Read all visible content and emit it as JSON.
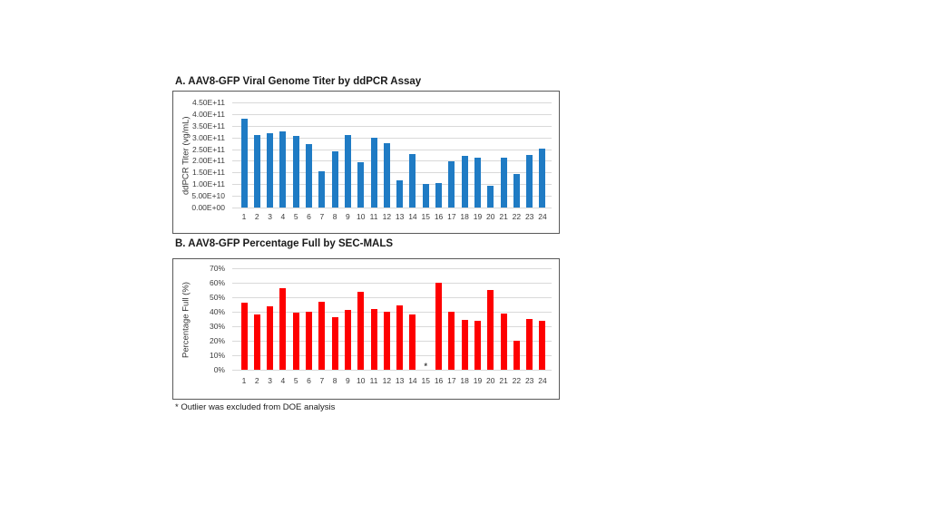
{
  "figure": {
    "background": "#ffffff"
  },
  "footnote": "* Outlier was excluded from DOE analysis",
  "chart_data": [
    {
      "type": "bar",
      "title": "A. AAV8-GFP Viral Genome Titer by ddPCR Assay",
      "xlabel": "",
      "ylabel": "ddPCR Titer (vg/mL)",
      "categories": [
        "1",
        "2",
        "3",
        "4",
        "5",
        "6",
        "7",
        "8",
        "9",
        "10",
        "11",
        "12",
        "13",
        "14",
        "15",
        "16",
        "17",
        "18",
        "19",
        "20",
        "21",
        "22",
        "23",
        "24"
      ],
      "values": [
        380000000000.0,
        310000000000.0,
        320000000000.0,
        325000000000.0,
        307000000000.0,
        272000000000.0,
        155000000000.0,
        240000000000.0,
        310000000000.0,
        193000000000.0,
        300000000000.0,
        275000000000.0,
        117000000000.0,
        227000000000.0,
        100000000000.0,
        105000000000.0,
        197000000000.0,
        222000000000.0,
        212000000000.0,
        93000000000.0,
        215000000000.0,
        145000000000.0,
        225000000000.0,
        252000000000.0
      ],
      "ylim": [
        0,
        450000000000.0
      ],
      "ytick_labels": [
        "4.50E+11",
        "4.00E+11",
        "3.50E+11",
        "3.00E+11",
        "2.50E+11",
        "2.00E+11",
        "1.50E+11",
        "1.00E+11",
        "5.00E+10",
        "0.00E+00"
      ],
      "grid": true,
      "legend": false,
      "bar_color": "#1F7BC4",
      "gridline_color": "#D9D9D9",
      "border_color": "#595959"
    },
    {
      "type": "bar",
      "title": "B. AAV8-GFP Percentage Full by SEC-MALS",
      "xlabel": "",
      "ylabel": "Percentage Full (%)",
      "categories": [
        "1",
        "2",
        "3",
        "4",
        "5",
        "6",
        "7",
        "8",
        "9",
        "10",
        "11",
        "12",
        "13",
        "14",
        "15",
        "16",
        "17",
        "18",
        "19",
        "20",
        "21",
        "22",
        "23",
        "24"
      ],
      "values": [
        46,
        38,
        43.5,
        56,
        39.5,
        40,
        47,
        36.5,
        41,
        54,
        42,
        40,
        44.5,
        38,
        null,
        60,
        40,
        34.5,
        33.5,
        55,
        39,
        20,
        35,
        34
      ],
      "ylim": [
        0,
        70
      ],
      "ytick_labels": [
        "70%",
        "60%",
        "50%",
        "40%",
        "30%",
        "20%",
        "10%",
        "0%"
      ],
      "grid": true,
      "legend": false,
      "bar_color": "#FE0000",
      "gridline_color": "#D9D9D9",
      "border_color": "#595959",
      "annotations": [
        {
          "category": "15",
          "symbol": "*"
        }
      ]
    }
  ]
}
